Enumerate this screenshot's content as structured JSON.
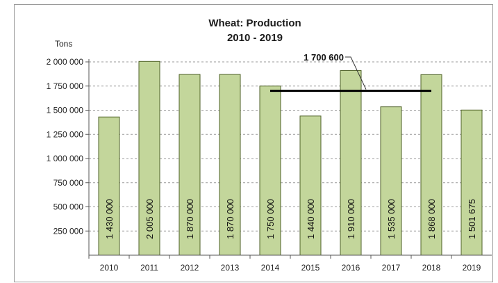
{
  "chart_data": {
    "type": "bar",
    "title": "Wheat: Production",
    "subtitle": "2010 - 2019",
    "ylabel": "Tons",
    "xlabel": "",
    "categories": [
      "2010",
      "2011",
      "2012",
      "2013",
      "2014",
      "2015",
      "2016",
      "2017",
      "2018",
      "2019"
    ],
    "values": [
      1430000,
      2005000,
      1870000,
      1870000,
      1750000,
      1440000,
      1910000,
      1535000,
      1868000,
      1501675
    ],
    "data_labels": [
      "1 430 000",
      "2 005 000",
      "1 870 000",
      "1 870 000",
      "1 750 000",
      "1 440 000",
      "1 910 000",
      "1 535 000",
      "1 868 000",
      "1 501 675"
    ],
    "ylim": [
      0,
      2000000
    ],
    "yticks": [
      250000,
      500000,
      750000,
      1000000,
      1250000,
      1500000,
      1750000,
      2000000
    ],
    "ytick_labels": [
      "250 000",
      "500 000",
      "750 000",
      "1 000 000",
      "1 250 000",
      "1 500 000",
      "1 750 000",
      "2 000 000"
    ],
    "grid": true,
    "bar_color": "#c3d69b",
    "bar_edge_color": "#4f6228",
    "reference_line": {
      "value": 1700600,
      "label": "1 700 600",
      "from_category": "2014",
      "to_category": "2018",
      "color": "#000000"
    }
  }
}
